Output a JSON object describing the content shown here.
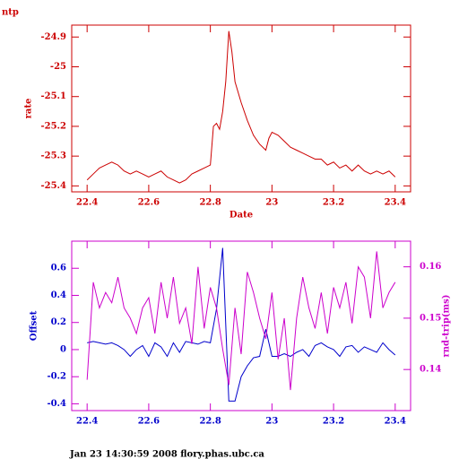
{
  "chart_data": [
    {
      "type": "line",
      "title": "ntp",
      "xlabel": "Date",
      "ylabel": "rate",
      "axis_color": "#cc0000",
      "x": [
        22.4,
        22.42,
        22.44,
        22.46,
        22.48,
        22.5,
        22.52,
        22.54,
        22.56,
        22.58,
        22.6,
        22.62,
        22.64,
        22.66,
        22.68,
        22.7,
        22.72,
        22.74,
        22.76,
        22.78,
        22.8,
        22.81,
        22.82,
        22.83,
        22.84,
        22.85,
        22.86,
        22.87,
        22.88,
        22.9,
        22.92,
        22.94,
        22.96,
        22.98,
        22.99,
        23.0,
        23.02,
        23.04,
        23.06,
        23.08,
        23.1,
        23.12,
        23.14,
        23.16,
        23.18,
        23.2,
        23.22,
        23.24,
        23.26,
        23.28,
        23.3,
        23.32,
        23.34,
        23.36,
        23.38,
        23.4
      ],
      "series": [
        {
          "name": "rate",
          "color": "#cc0000",
          "values": [
            -25.38,
            -25.36,
            -25.34,
            -25.33,
            -25.32,
            -25.33,
            -25.35,
            -25.36,
            -25.35,
            -25.36,
            -25.37,
            -25.36,
            -25.35,
            -25.37,
            -25.38,
            -25.39,
            -25.38,
            -25.36,
            -25.35,
            -25.34,
            -25.33,
            -25.2,
            -25.19,
            -25.21,
            -25.15,
            -25.05,
            -24.88,
            -24.95,
            -25.05,
            -25.12,
            -25.18,
            -25.23,
            -25.26,
            -25.28,
            -25.24,
            -25.22,
            -25.23,
            -25.25,
            -25.27,
            -25.28,
            -25.29,
            -25.3,
            -25.31,
            -25.31,
            -25.33,
            -25.32,
            -25.34,
            -25.33,
            -25.35,
            -25.33,
            -25.35,
            -25.36,
            -25.35,
            -25.36,
            -25.35,
            -25.37
          ]
        }
      ],
      "xlim": [
        22.35,
        23.45
      ],
      "xticks": [
        22.4,
        22.6,
        22.8,
        23,
        23.2,
        23.4
      ],
      "ylim": [
        -25.42,
        -24.86
      ],
      "yticks": [
        -25.4,
        -25.3,
        -25.2,
        -25.1,
        -25,
        -24.9
      ]
    },
    {
      "type": "line",
      "ylabel": "Offset",
      "y2label": "rnd-trip(ms)",
      "axis_color": "#cc00cc",
      "x": [
        22.4,
        22.42,
        22.44,
        22.46,
        22.48,
        22.5,
        22.52,
        22.54,
        22.56,
        22.58,
        22.6,
        22.62,
        22.64,
        22.66,
        22.68,
        22.7,
        22.72,
        22.74,
        22.76,
        22.78,
        22.8,
        22.82,
        22.84,
        22.86,
        22.88,
        22.9,
        22.92,
        22.94,
        22.96,
        22.98,
        23.0,
        23.02,
        23.04,
        23.06,
        23.08,
        23.1,
        23.12,
        23.14,
        23.16,
        23.18,
        23.2,
        23.22,
        23.24,
        23.26,
        23.28,
        23.3,
        23.32,
        23.34,
        23.36,
        23.38,
        23.4
      ],
      "series": [
        {
          "name": "Offset",
          "color": "#0000cc",
          "values": [
            0.05,
            0.06,
            0.05,
            0.04,
            0.05,
            0.03,
            0.0,
            -0.05,
            0.0,
            0.03,
            -0.05,
            0.05,
            0.02,
            -0.05,
            0.05,
            -0.02,
            0.06,
            0.05,
            0.04,
            0.06,
            0.05,
            0.3,
            0.75,
            -0.38,
            -0.38,
            -0.2,
            -0.12,
            -0.06,
            -0.05,
            0.15,
            -0.05,
            -0.05,
            -0.03,
            -0.05,
            -0.02,
            0.0,
            -0.05,
            0.03,
            0.05,
            0.02,
            0.0,
            -0.05,
            0.02,
            0.03,
            -0.02,
            0.02,
            0.0,
            -0.02,
            0.05,
            0.0,
            -0.04
          ]
        },
        {
          "name": "rnd-trip(ms)",
          "color": "#cc00cc",
          "axis": "y2",
          "values": [
            0.138,
            0.157,
            0.152,
            0.155,
            0.153,
            0.158,
            0.152,
            0.15,
            0.147,
            0.152,
            0.154,
            0.147,
            0.157,
            0.15,
            0.158,
            0.149,
            0.152,
            0.145,
            0.16,
            0.148,
            0.156,
            0.152,
            0.144,
            0.137,
            0.152,
            0.143,
            0.159,
            0.155,
            0.15,
            0.146,
            0.155,
            0.142,
            0.15,
            0.136,
            0.15,
            0.158,
            0.152,
            0.148,
            0.155,
            0.147,
            0.156,
            0.152,
            0.157,
            0.149,
            0.16,
            0.158,
            0.15,
            0.163,
            0.152,
            0.155,
            0.157
          ]
        }
      ],
      "xlim": [
        22.35,
        23.45
      ],
      "xticks": [
        22.4,
        22.6,
        22.8,
        23,
        23.2,
        23.4
      ],
      "ylim": [
        -0.45,
        0.8
      ],
      "yticks": [
        -0.4,
        -0.2,
        0,
        0.2,
        0.4,
        0.6
      ],
      "y2lim": [
        0.132,
        0.165
      ],
      "y2ticks": [
        0.14,
        0.15,
        0.16
      ]
    }
  ],
  "footer": "Jan 23 14:30:59 2008 flory.phas.ubc.ca"
}
